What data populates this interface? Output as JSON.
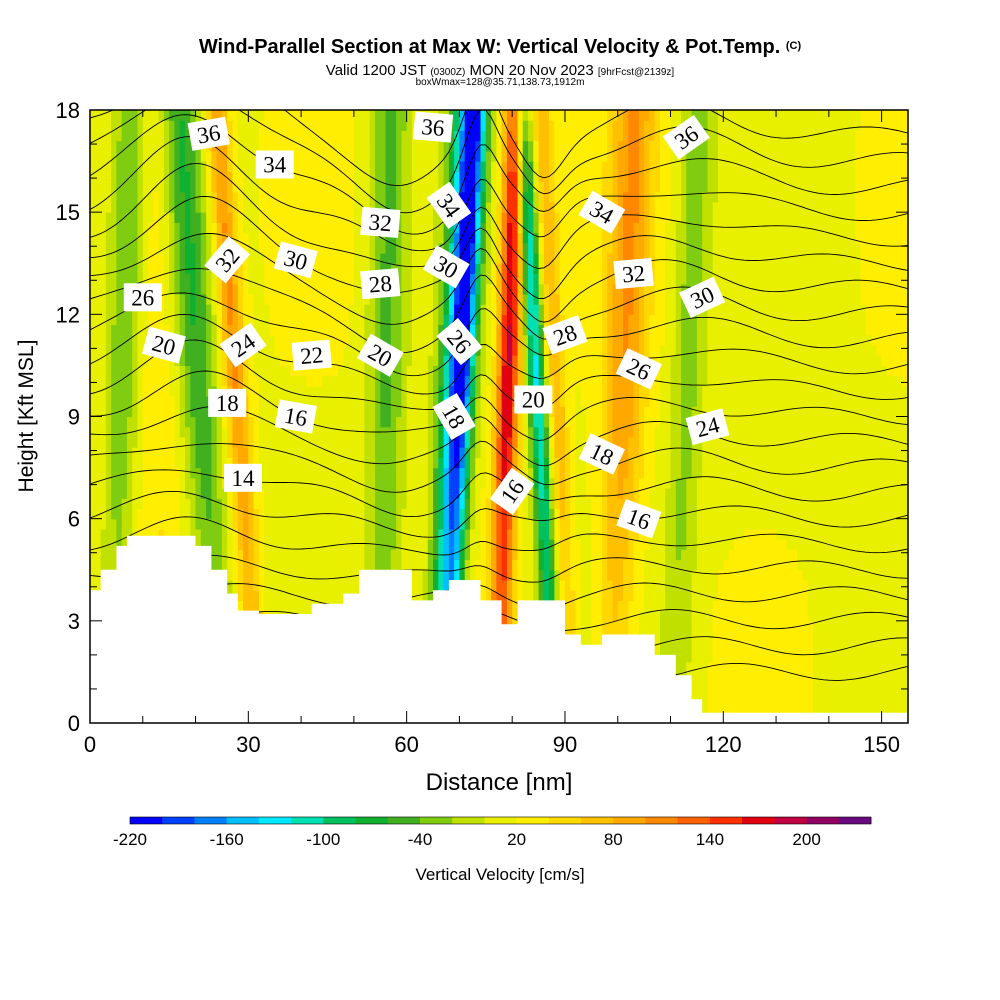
{
  "header": {
    "title": "Wind-Parallel Section at Max W: Vertical Velocity & Pot.Temp.",
    "copyright_mark": "(C)",
    "valid_prefix": "Valid 1200 JST",
    "valid_utc": "(0300Z)",
    "valid_date": "MON 20 Nov 2023",
    "forecast_info": "[9hrFcst@2139z]",
    "box_info": "boxWmax=128@35.71,138.73,1912m"
  },
  "chart_data": {
    "type": "heatmap",
    "xlabel": "Distance [nm]",
    "ylabel": "Height [Kft MSL]",
    "xlim": [
      0,
      155
    ],
    "ylim": [
      0,
      18
    ],
    "x_ticks": [
      0,
      30,
      60,
      90,
      120,
      150
    ],
    "y_ticks": [
      0,
      3,
      6,
      9,
      12,
      15,
      18
    ],
    "colorbar": {
      "label": "Vertical Velocity [cm/s]",
      "tick_labels": [
        "-220",
        "-160",
        "-100",
        "-40",
        "20",
        "80",
        "140",
        "200"
      ],
      "tick_values": [
        -220,
        -160,
        -100,
        -40,
        20,
        80,
        140,
        200
      ],
      "range": [
        -220,
        240
      ],
      "colors": [
        "#0000ff",
        "#0040ff",
        "#0080ff",
        "#00bfff",
        "#00e8ff",
        "#00e0b0",
        "#00c060",
        "#10b030",
        "#40b020",
        "#80cc10",
        "#c0e000",
        "#e8f000",
        "#ffee00",
        "#ffd800",
        "#ffc000",
        "#ffa800",
        "#ff8800",
        "#ff6000",
        "#ff3000",
        "#e00010",
        "#c00040",
        "#900060",
        "#6a0a80"
      ]
    },
    "terrain_kft": [
      [
        0,
        3.9
      ],
      [
        2,
        3.9
      ],
      [
        2,
        4.5
      ],
      [
        5,
        4.5
      ],
      [
        5,
        5.2
      ],
      [
        7,
        5.2
      ],
      [
        7,
        5.5
      ],
      [
        20,
        5.5
      ],
      [
        20,
        5.2
      ],
      [
        23,
        5.2
      ],
      [
        23,
        4.5
      ],
      [
        26,
        4.5
      ],
      [
        26,
        3.8
      ],
      [
        28,
        3.8
      ],
      [
        28,
        3.3
      ],
      [
        32,
        3.3
      ],
      [
        32,
        3.2
      ],
      [
        42,
        3.2
      ],
      [
        42,
        3.5
      ],
      [
        48,
        3.5
      ],
      [
        48,
        3.8
      ],
      [
        51,
        3.8
      ],
      [
        51,
        4.5
      ],
      [
        61,
        4.5
      ],
      [
        61,
        3.6
      ],
      [
        65,
        3.6
      ],
      [
        65,
        3.9
      ],
      [
        68,
        3.9
      ],
      [
        68,
        4.2
      ],
      [
        74,
        4.2
      ],
      [
        74,
        3.6
      ],
      [
        78,
        3.6
      ],
      [
        78,
        2.9
      ],
      [
        81,
        2.9
      ],
      [
        81,
        3.6
      ],
      [
        90,
        3.6
      ],
      [
        90,
        2.6
      ],
      [
        93,
        2.6
      ],
      [
        93,
        2.3
      ],
      [
        97,
        2.3
      ],
      [
        97,
        2.6
      ],
      [
        107,
        2.6
      ],
      [
        107,
        2.0
      ],
      [
        111,
        2.0
      ],
      [
        111,
        1.4
      ],
      [
        114,
        1.4
      ],
      [
        114,
        0.7
      ],
      [
        116,
        0.7
      ],
      [
        116,
        0.3
      ],
      [
        155,
        0.3
      ]
    ],
    "velocity_features": [
      {
        "x": 70,
        "w": 2.4,
        "amp": -220,
        "tilt": 0.32
      },
      {
        "x": 67.5,
        "w": 2.5,
        "amp": -70,
        "tilt": 0.32
      },
      {
        "x": 79,
        "w": 2.2,
        "amp": 170,
        "tilt": 0.2
      },
      {
        "x": 85,
        "w": 1.8,
        "amp": -140,
        "tilt": -0.35
      },
      {
        "x": 88.5,
        "w": 2.0,
        "amp": 60,
        "tilt": -0.35
      },
      {
        "x": 28,
        "w": 2.2,
        "amp": 90,
        "tilt": -0.45
      },
      {
        "x": 21,
        "w": 3.5,
        "amp": -70,
        "tilt": -0.45
      },
      {
        "x": 56,
        "w": 3.5,
        "amp": -60,
        "tilt": 0.08
      },
      {
        "x": 101,
        "w": 4.0,
        "amp": 80,
        "tilt": 0.25
      },
      {
        "x": 113,
        "w": 3.0,
        "amp": -45,
        "tilt": 0.25
      },
      {
        "x": 6,
        "w": 3.0,
        "amp": -50,
        "tilt": 0.2
      },
      {
        "x": 13,
        "w": 4.0,
        "amp": 25,
        "tilt": -0.1
      }
    ],
    "isentropes": {
      "count": 22,
      "base_level_kft": 1.5,
      "spacing_kft": 0.75
    },
    "contour_labels": [
      {
        "text": "36",
        "x": 22.5,
        "y": 17.3,
        "rot": -10
      },
      {
        "text": "34",
        "x": 35,
        "y": 16.4,
        "rot": 0
      },
      {
        "text": "36",
        "x": 65,
        "y": 17.5,
        "rot": 5
      },
      {
        "text": "34",
        "x": 68,
        "y": 15.2,
        "rot": 55
      },
      {
        "text": "36",
        "x": 113,
        "y": 17.2,
        "rot": -35
      },
      {
        "text": "34",
        "x": 97,
        "y": 15.0,
        "rot": 30
      },
      {
        "text": "32",
        "x": 55,
        "y": 14.7,
        "rot": 5
      },
      {
        "text": "32",
        "x": 26,
        "y": 13.6,
        "rot": -50
      },
      {
        "text": "30",
        "x": 39,
        "y": 13.6,
        "rot": 15
      },
      {
        "text": "30",
        "x": 67.5,
        "y": 13.4,
        "rot": 30
      },
      {
        "text": "28",
        "x": 55,
        "y": 12.9,
        "rot": -5
      },
      {
        "text": "32",
        "x": 103,
        "y": 13.2,
        "rot": -5
      },
      {
        "text": "30",
        "x": 116,
        "y": 12.5,
        "rot": -25
      },
      {
        "text": "26",
        "x": 10,
        "y": 12.5,
        "rot": 0
      },
      {
        "text": "28",
        "x": 90,
        "y": 11.4,
        "rot": -20
      },
      {
        "text": "26",
        "x": 70,
        "y": 11.2,
        "rot": 50
      },
      {
        "text": "20",
        "x": 14,
        "y": 11.1,
        "rot": 15
      },
      {
        "text": "24",
        "x": 29,
        "y": 11.1,
        "rot": -35
      },
      {
        "text": "22",
        "x": 42,
        "y": 10.8,
        "rot": -5
      },
      {
        "text": "20",
        "x": 55,
        "y": 10.8,
        "rot": 30
      },
      {
        "text": "26",
        "x": 104,
        "y": 10.4,
        "rot": 25
      },
      {
        "text": "20",
        "x": 84,
        "y": 9.5,
        "rot": 0
      },
      {
        "text": "18",
        "x": 26,
        "y": 9.4,
        "rot": 0
      },
      {
        "text": "16",
        "x": 39,
        "y": 9.0,
        "rot": 10
      },
      {
        "text": "18",
        "x": 69,
        "y": 9.0,
        "rot": 60
      },
      {
        "text": "24",
        "x": 117,
        "y": 8.7,
        "rot": -15
      },
      {
        "text": "18",
        "x": 97,
        "y": 7.9,
        "rot": 25
      },
      {
        "text": "14",
        "x": 29,
        "y": 7.2,
        "rot": 0
      },
      {
        "text": "16",
        "x": 80,
        "y": 6.8,
        "rot": -55
      },
      {
        "text": "16",
        "x": 104,
        "y": 6.0,
        "rot": 20
      }
    ]
  }
}
